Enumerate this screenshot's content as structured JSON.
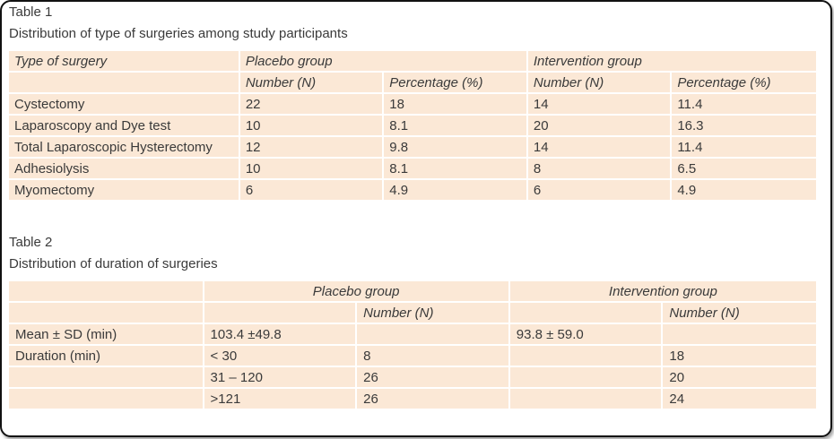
{
  "table1": {
    "label": "Table 1",
    "caption": "Distribution of type of surgeries among study participants",
    "header": {
      "type_label": "Type of surgery",
      "group1": "Placebo group",
      "group2": "Intervention group",
      "sub": [
        "Number (N)",
        "Percentage (%)",
        "Number (N)",
        "Percentage (%)"
      ]
    },
    "rows": [
      [
        "Cystectomy",
        "22",
        "18",
        "14",
        "11.4"
      ],
      [
        "Laparoscopy and Dye test",
        "10",
        "8.1",
        "20",
        "16.3"
      ],
      [
        "Total Laparoscopic Hysterectomy",
        "12",
        "9.8",
        "14",
        "11.4"
      ],
      [
        "Adhesiolysis",
        "10",
        "8.1",
        "8",
        "6.5"
      ],
      [
        "Myomectomy",
        "6",
        "4.9",
        "6",
        "4.9"
      ]
    ]
  },
  "table2": {
    "label": "Table 2",
    "caption": "Distribution of duration of surgeries",
    "header": {
      "group1": "Placebo group",
      "group2": "Intervention group",
      "sub1": "Number (N)",
      "sub2": "Number (N)"
    },
    "rows": [
      [
        "Mean ± SD (min)",
        "103.4 ±49.8",
        "",
        "93.8 ± 59.0",
        ""
      ],
      [
        "Duration (min)",
        "< 30",
        "8",
        "",
        "18"
      ],
      [
        "",
        "31 – 120",
        "26",
        "",
        "20"
      ],
      [
        "",
        ">121",
        "26",
        "",
        "24"
      ]
    ]
  }
}
